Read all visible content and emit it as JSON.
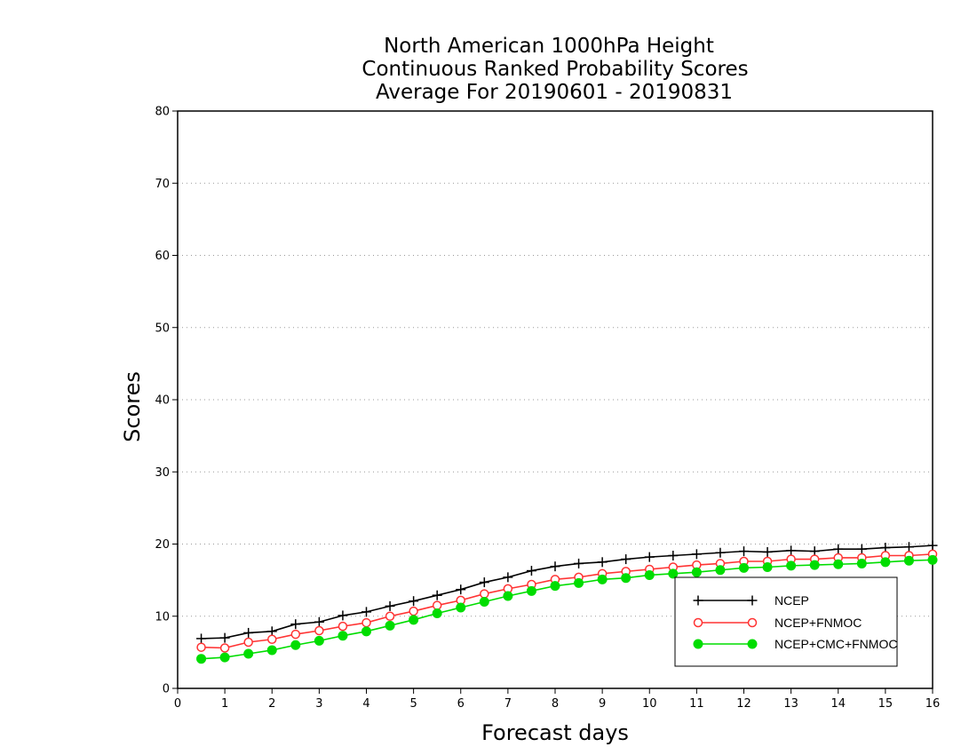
{
  "chart_data": {
    "type": "line",
    "title": [
      "North American 1000hPa Height",
      "Continuous Ranked Probability Scores",
      "Average For 20190601 - 20190831"
    ],
    "xlabel": "Forecast days",
    "ylabel": "Scores",
    "xlim": [
      0,
      16
    ],
    "ylim": [
      0,
      80
    ],
    "xticks": [
      "0",
      "1",
      "2",
      "3",
      "4",
      "5",
      "6",
      "7",
      "8",
      "9",
      "10",
      "11",
      "12",
      "13",
      "14",
      "15",
      "16"
    ],
    "yticks": [
      "0",
      "10",
      "20",
      "30",
      "40",
      "50",
      "60",
      "70",
      "80"
    ],
    "grid": true,
    "legend_position": "lower-right",
    "x": [
      0.5,
      1,
      1.5,
      2,
      2.5,
      3,
      3.5,
      4,
      4.5,
      5,
      5.5,
      6,
      6.5,
      7,
      7.5,
      8,
      8.5,
      9,
      9.5,
      10,
      10.5,
      11,
      11.5,
      12,
      12.5,
      13,
      13.5,
      14,
      14.5,
      15,
      15.5,
      16
    ],
    "series": [
      {
        "name": "NCEP",
        "color": "#000000",
        "marker": "plus",
        "values": [
          6.9,
          7.0,
          7.7,
          7.9,
          8.9,
          9.2,
          10.1,
          10.6,
          11.4,
          12.1,
          12.9,
          13.7,
          14.7,
          15.4,
          16.3,
          16.9,
          17.3,
          17.5,
          17.9,
          18.2,
          18.4,
          18.6,
          18.8,
          19.0,
          18.9,
          19.1,
          19.0,
          19.3,
          19.3,
          19.5,
          19.6,
          19.8
        ]
      },
      {
        "name": "NCEP+FNMOC",
        "color": "#ff3333",
        "marker": "open-circle",
        "values": [
          5.7,
          5.6,
          6.4,
          6.8,
          7.5,
          8.0,
          8.6,
          9.1,
          10.0,
          10.7,
          11.5,
          12.2,
          13.1,
          13.8,
          14.4,
          15.1,
          15.4,
          15.9,
          16.2,
          16.5,
          16.8,
          17.1,
          17.3,
          17.6,
          17.6,
          17.9,
          17.9,
          18.1,
          18.1,
          18.4,
          18.4,
          18.6
        ]
      },
      {
        "name": "NCEP+CMC+FNMOC",
        "color": "#00dd00",
        "marker": "filled-circle",
        "values": [
          4.1,
          4.3,
          4.8,
          5.3,
          6.0,
          6.6,
          7.3,
          7.9,
          8.7,
          9.5,
          10.4,
          11.2,
          12.0,
          12.8,
          13.5,
          14.2,
          14.6,
          15.1,
          15.3,
          15.7,
          15.9,
          16.1,
          16.4,
          16.7,
          16.8,
          17.0,
          17.1,
          17.2,
          17.3,
          17.5,
          17.7,
          17.8
        ]
      }
    ]
  }
}
